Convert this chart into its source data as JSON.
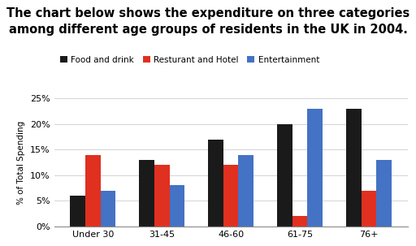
{
  "title_line1": "The chart below shows the expenditure on three categories",
  "title_line2": "among different age groups of residents in the UK in 2004.",
  "categories": [
    "Under 30",
    "31-45",
    "46-60",
    "61-75",
    "76+"
  ],
  "series": [
    {
      "name": "Food and drink",
      "color": "#1a1a1a",
      "values": [
        6,
        13,
        17,
        20,
        23
      ]
    },
    {
      "name": "Resturant and Hotel",
      "color": "#e03020",
      "values": [
        14,
        12,
        12,
        2,
        7
      ]
    },
    {
      "name": "Entertainment",
      "color": "#4472c4",
      "values": [
        7,
        8,
        14,
        23,
        13
      ]
    }
  ],
  "ylabel": "% of Total Spending",
  "ylim": [
    0,
    25
  ],
  "yticks": [
    0,
    5,
    10,
    15,
    20,
    25
  ],
  "ytick_labels": [
    "0%",
    "5%",
    "10%",
    "15%",
    "20%",
    "25%"
  ],
  "background_color": "#ffffff",
  "bar_width": 0.22,
  "title_fontsize": 10.5,
  "legend_fontsize": 7.5,
  "axis_fontsize": 7.5,
  "tick_fontsize": 8
}
